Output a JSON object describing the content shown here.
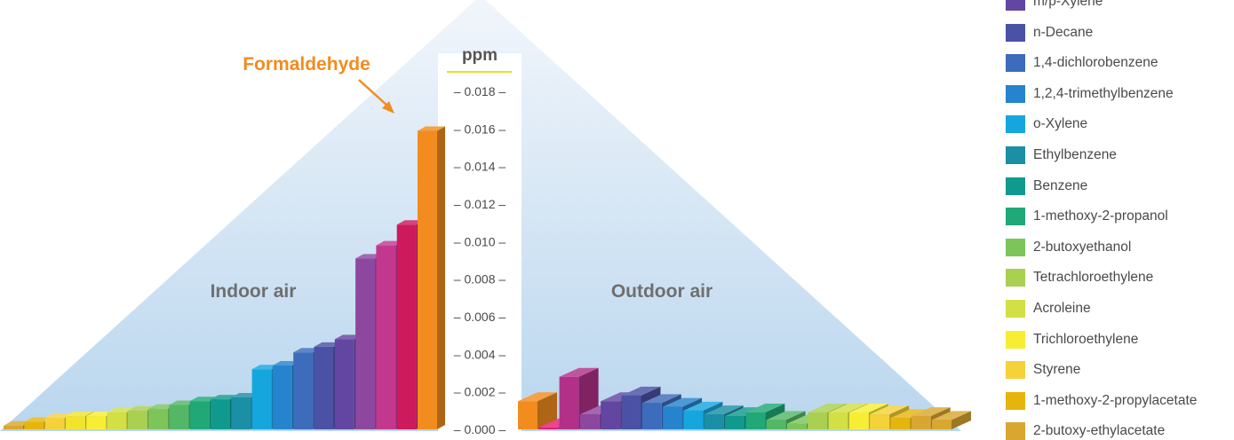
{
  "chart_data": {
    "type": "bar",
    "ylabel": "ppm",
    "ylim": [
      0,
      0.0185
    ],
    "yticks": [
      "0.000",
      "0.002",
      "0.004",
      "0.006",
      "0.008",
      "0.010",
      "0.012",
      "0.014",
      "0.016",
      "0.018"
    ],
    "groups": [
      {
        "label": "Indoor air",
        "values": [
          0.0002,
          0.0004,
          0.0006,
          0.0007,
          0.0007,
          0.0009,
          0.001,
          0.0011,
          0.0013,
          0.0015,
          0.0016,
          0.0017,
          0.0032,
          0.0034,
          0.0041,
          0.0044,
          0.0048,
          0.0091,
          0.0098,
          0.0109,
          0.0159
        ],
        "colors": [
          "#d9a730",
          "#e6b50d",
          "#f5d13a",
          "#f2e42c",
          "#f7ee33",
          "#d2df45",
          "#a9d050",
          "#7dc55a",
          "#53b865",
          "#20a877",
          "#109a8e",
          "#1a8fa5",
          "#16a6de",
          "#2584cd",
          "#3d6cbc",
          "#4b52a5",
          "#6246a1",
          "#8e479f",
          "#c2388f",
          "#cc1a5c",
          "#f28c1e"
        ]
      },
      {
        "label": "Outdoor air",
        "values": [
          0.0015,
          0.0001,
          0.0028,
          0.0008,
          0.0015,
          0.0018,
          0.0014,
          0.0012,
          0.001,
          0.0008,
          0.0007,
          0.0009,
          0.0005,
          0.0003,
          0.0009,
          0.0009,
          0.0009,
          0.0008,
          0.0006,
          0.0007,
          0.0005
        ],
        "colors": [
          "#f28c1e",
          "#e81b77",
          "#b23088",
          "#8e479f",
          "#6246a1",
          "#4b52a5",
          "#3d6cbc",
          "#2584cd",
          "#16a6de",
          "#1a8fa5",
          "#109a8e",
          "#20a877",
          "#53b865",
          "#7dc55a",
          "#a9d050",
          "#d2df45",
          "#f7ee33",
          "#f5d13a",
          "#e6b50d",
          "#d9a730",
          "#d9a730"
        ]
      }
    ],
    "annotation": {
      "text": "Formaldehyde",
      "target": "Indoor air"
    },
    "legend": {
      "placement": "right",
      "items": [
        {
          "label": "m/p-Xylene",
          "color": "#6246a1"
        },
        {
          "label": "n-Decane",
          "color": "#4b52a5"
        },
        {
          "label": "1,4-dichlorobenzene",
          "color": "#3d6cbc"
        },
        {
          "label": "1,2,4-trimethylbenzene",
          "color": "#2584cd"
        },
        {
          "label": "o-Xylene",
          "color": "#16a6de"
        },
        {
          "label": "Ethylbenzene",
          "color": "#1a8fa5"
        },
        {
          "label": "Benzene",
          "color": "#109a8e"
        },
        {
          "label": "1-methoxy-2-propanol",
          "color": "#20a877"
        },
        {
          "label": "2-butoxyethanol",
          "color": "#7dc55a"
        },
        {
          "label": "Tetrachloroethylene",
          "color": "#a9d050"
        },
        {
          "label": "Acroleine",
          "color": "#d2df45"
        },
        {
          "label": "Trichloroethylene",
          "color": "#f7ee33"
        },
        {
          "label": "Styrene",
          "color": "#f5d13a"
        },
        {
          "label": "1-methoxy-2-propylacetate",
          "color": "#e6b50d"
        },
        {
          "label": "2-butoxy-ethylacetate",
          "color": "#d9a730"
        }
      ]
    }
  }
}
